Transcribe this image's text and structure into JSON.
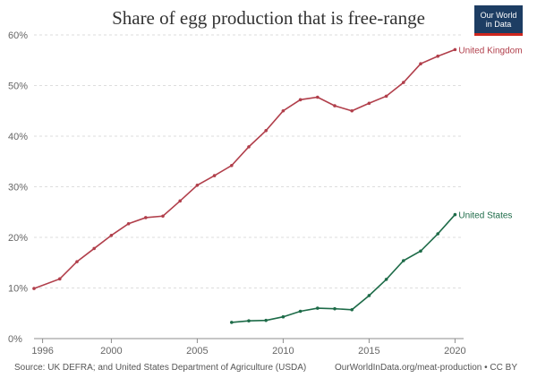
{
  "chart_data": {
    "type": "line",
    "title": "Share of egg production that is free-range",
    "xlabel": "",
    "ylabel": "",
    "xlim": [
      1995.5,
      2020.5
    ],
    "ylim": [
      0,
      60
    ],
    "x_ticks": [
      1996,
      2000,
      2005,
      2010,
      2015,
      2020
    ],
    "y_ticks": [
      0,
      10,
      20,
      30,
      40,
      50,
      60
    ],
    "y_tick_labels": [
      "0%",
      "10%",
      "20%",
      "30%",
      "40%",
      "50%",
      "60%"
    ],
    "grid": "horizontal-dashed",
    "series": [
      {
        "name": "United Kingdom",
        "color": "#b13f4b",
        "x": [
          1995.5,
          1997,
          1998,
          1999,
          2000,
          2001,
          2002,
          2003,
          2004,
          2005,
          2006,
          2007,
          2008,
          2009,
          2010,
          2011,
          2012,
          2013,
          2014,
          2015,
          2016,
          2017,
          2018,
          2019,
          2020
        ],
        "values": [
          9.9,
          11.8,
          15.2,
          17.8,
          20.4,
          22.7,
          23.9,
          24.2,
          27.2,
          30.3,
          32.2,
          34.2,
          37.9,
          41.1,
          45.0,
          47.2,
          47.7,
          46.0,
          45.0,
          46.5,
          47.9,
          50.6,
          54.3,
          55.8,
          57.1
        ]
      },
      {
        "name": "United States",
        "color": "#1d6b48",
        "x": [
          2007,
          2008,
          2009,
          2010,
          2011,
          2012,
          2013,
          2014,
          2015,
          2016,
          2017,
          2018,
          2019,
          2020
        ],
        "values": [
          3.2,
          3.5,
          3.6,
          4.3,
          5.4,
          6.0,
          5.9,
          5.7,
          8.5,
          11.7,
          15.4,
          17.3,
          20.7,
          24.5
        ]
      }
    ]
  },
  "logo": {
    "line1": "Our World",
    "line2": "in Data"
  },
  "footer": {
    "source": "Source: UK DEFRA; and United States Department of Agriculture (USDA)",
    "credit": "OurWorldInData.org/meat-production • CC BY"
  }
}
